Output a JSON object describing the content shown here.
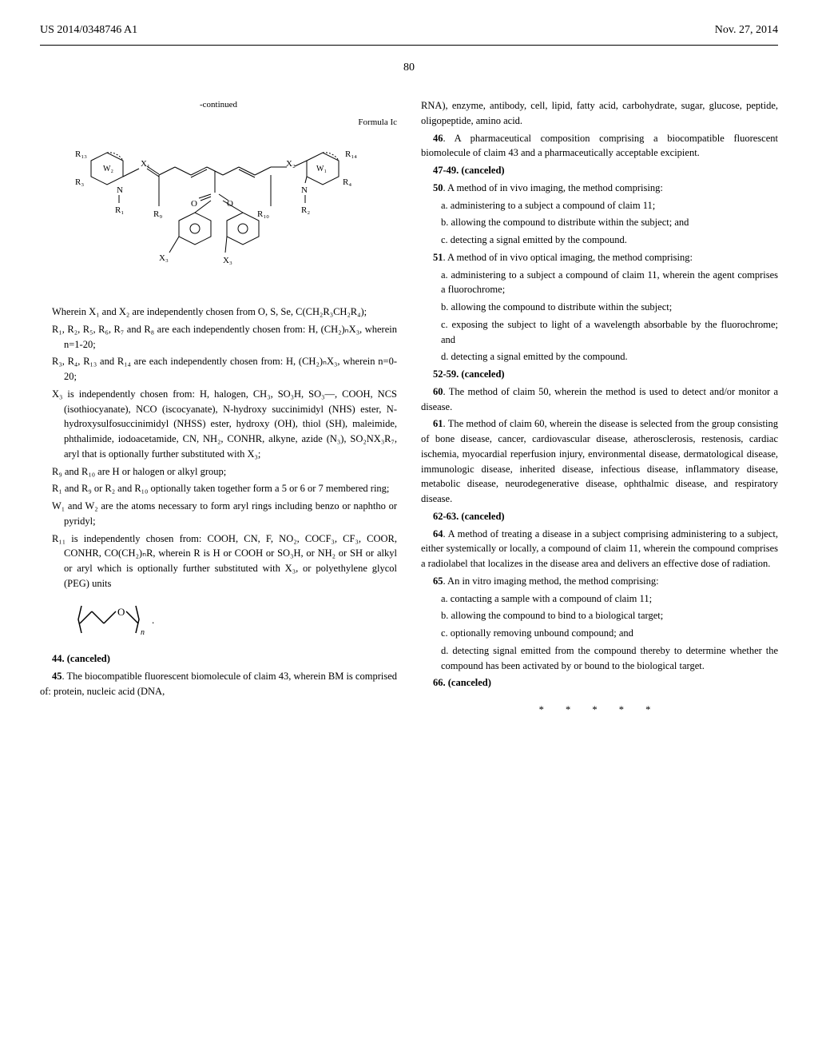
{
  "header": {
    "pub_number": "US 2014/0348746 A1",
    "pub_date": "Nov. 27, 2014"
  },
  "page_number": "80",
  "left_column": {
    "continued_label": "-continued",
    "formula_label": "Formula Ic",
    "wherein_text": "Wherein X₁ and X₂ are independently chosen from O, S, Se, C(CH₂R₃CH₂R₄);",
    "r1_text": "R₁, R₂, R₅, R₆, R₇ and R₈ are each independently chosen from: H, (CH₂)ₙX₃, wherein n=1-20;",
    "r3_text": "R₃, R₄, R₁₃ and R₁₄ are each independently chosen from: H, (CH₂)ₙX₃, wherein n=0-20;",
    "x3_text": "X₃ is independently chosen from: H, halogen, CH₃, SO₃H, SO₃—, COOH, NCS (isothiocyanate), NCO (iscocyanate), N-hydroxy succinimidyl (NHS) ester, N-hydroxysulfosuccinimidyl (NHSS) ester, hydroxy (OH), thiol (SH), maleimide, phthalimide, iodoacetamide, CN, NH₂, CONHR, alkyne, azide (N₃), SO₂NX₃R₇, aryl that is optionally further substituted with X₃;",
    "r9_text": "R₉ and R₁₀ are H or halogen or alkyl group;",
    "r1r9_text": "R₁ and R₉ or R₂ and R₁₀ optionally taken together form a 5 or 6 or 7 membered ring;",
    "w1_text": "W₁ and W₂ are the atoms necessary to form aryl rings including benzo or naphtho or pyridyl;",
    "r11_text": "R₁₁ is independently chosen from: COOH, CN, F, NO₂, COCF₃, CF₃, COOR, CONHR, CO(CH₂)ₙR, wherein R is H or COOH or SO₃H, or NH₂ or SH or alkyl or aryl which is optionally further substituted with X₃, or polyethylene glycol (PEG) units",
    "claim44": "44. (canceled)",
    "claim45": "45. The biocompatible fluorescent biomolecule of claim 43, wherein BM is comprised of: protein, nucleic acid (DNA,"
  },
  "right_column": {
    "claim45_cont": "RNA), enzyme, antibody, cell, lipid, fatty acid, carbohydrate, sugar, glucose, peptide, oligopeptide, amino acid.",
    "claim46": "46. A pharmaceutical composition comprising a biocompatible fluorescent biomolecule of claim 43 and a pharmaceutically acceptable excipient.",
    "claim47_49": "47-49. (canceled)",
    "claim50": "50. A method of in vivo imaging, the method comprising:",
    "claim50a": "a. administering to a subject a compound of claim 11;",
    "claim50b": "b. allowing the compound to distribute within the subject; and",
    "claim50c": "c. detecting a signal emitted by the compound.",
    "claim51": "51. A method of in vivo optical imaging, the method comprising:",
    "claim51a": "a. administering to a subject a compound of claim 11, wherein the agent comprises a fluorochrome;",
    "claim51b": "b. allowing the compound to distribute within the subject;",
    "claim51c": "c. exposing the subject to light of a wavelength absorbable by the fluorochrome; and",
    "claim51d": "d. detecting a signal emitted by the compound.",
    "claim52_59": "52-59. (canceled)",
    "claim60": "60. The method of claim 50, wherein the method is used to detect and/or monitor a disease.",
    "claim61": "61. The method of claim 60, wherein the disease is selected from the group consisting of bone disease, cancer, cardiovascular disease, atherosclerosis, restenosis, cardiac ischemia, myocardial reperfusion injury, environmental disease, dermatological disease, immunologic disease, inherited disease, infectious disease, inflammatory disease, metabolic disease, neurodegenerative disease, ophthalmic disease, and respiratory disease.",
    "claim62_63": "62-63. (canceled)",
    "claim64": "64. A method of treating a disease in a subject comprising administering to a subject, either systemically or locally, a compound of claim 11, wherein the compound comprises a radiolabel that localizes in the disease area and delivers an effective dose of radiation.",
    "claim65": "65. An in vitro imaging method, the method comprising:",
    "claim65a": "a. contacting a sample with a compound of claim 11;",
    "claim65b": "b. allowing the compound to bind to a biological target;",
    "claim65c": "c. optionally removing unbound compound; and",
    "claim65d": "d. detecting signal emitted from the compound thereby to determine whether the compound has been activated by or bound to the biological target.",
    "claim66": "66. (canceled)",
    "end_stars": "* * * * *"
  },
  "chem_structure": {
    "labels": [
      "R₁₃",
      "R₃",
      "R₁",
      "R₉",
      "X₁",
      "W₂",
      "N",
      "O",
      "X₃",
      "X₃",
      "O",
      "R₁₀",
      "R₂",
      "N",
      "X₂",
      "W₁",
      "R₄",
      "R₁₄"
    ],
    "colors": {
      "line": "#000000",
      "background": "#ffffff"
    }
  },
  "peg_structure": {
    "label": "O",
    "subscript": "n"
  }
}
